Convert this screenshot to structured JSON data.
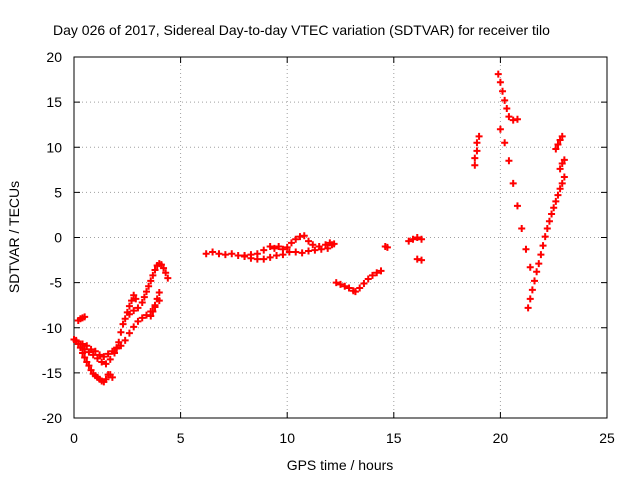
{
  "chart_data": {
    "type": "scatter",
    "title": "Day 026 of 2017, Sidereal Day-to-day VTEC variation (SDTVAR) for receiver tilo",
    "xlabel": "GPS time / hours",
    "ylabel": "SDTVAR / TECUs",
    "xlim": [
      0,
      25
    ],
    "ylim": [
      -20,
      20
    ],
    "x_ticks": [
      0,
      5,
      10,
      15,
      20,
      25
    ],
    "y_ticks": [
      -20,
      -15,
      -10,
      -5,
      0,
      5,
      10,
      15,
      20
    ],
    "grid": true,
    "legend": "none",
    "marker": "+",
    "color": "#ff0000",
    "series": [
      {
        "points": [
          [
            0,
            -11.3
          ],
          [
            0.1,
            -11.5
          ],
          [
            0.2,
            -11.8
          ],
          [
            0.3,
            -12.2
          ],
          [
            0.4,
            -12.8
          ],
          [
            0.5,
            -13.3
          ],
          [
            0.6,
            -13.8
          ],
          [
            0.7,
            -14.2
          ],
          [
            0.8,
            -14.7
          ],
          [
            0.9,
            -15.1
          ],
          [
            1.0,
            -15.3
          ],
          [
            1.1,
            -15.5
          ],
          [
            1.2,
            -15.7
          ],
          [
            1.3,
            -15.9
          ],
          [
            1.4,
            -16.0
          ],
          [
            1.5,
            -15.7
          ],
          [
            1.6,
            -15.2
          ],
          [
            1.7,
            -15.2
          ],
          [
            1.8,
            -15.5
          ]
        ]
      },
      {
        "points": [
          [
            0.2,
            -9.2
          ],
          [
            0.3,
            -9.0
          ],
          [
            0.4,
            -8.9
          ],
          [
            0.5,
            -8.8
          ]
        ]
      },
      {
        "points": [
          [
            0.1,
            -11.4
          ],
          [
            0.3,
            -11.8
          ],
          [
            0.5,
            -12.4
          ],
          [
            0.7,
            -12.7
          ],
          [
            0.9,
            -13.0
          ],
          [
            1.1,
            -13.4
          ],
          [
            1.3,
            -13.8
          ],
          [
            1.5,
            -14.0
          ],
          [
            1.7,
            -13.5
          ],
          [
            1.9,
            -12.8
          ],
          [
            2.0,
            -12.3
          ],
          [
            2.1,
            -11.6
          ],
          [
            2.2,
            -10.5
          ],
          [
            2.3,
            -9.6
          ],
          [
            2.4,
            -9.0
          ],
          [
            2.5,
            -8.3
          ],
          [
            2.6,
            -7.6
          ],
          [
            2.7,
            -7.0
          ],
          [
            2.8,
            -6.4
          ],
          [
            2.9,
            -6.8
          ]
        ]
      },
      {
        "points": [
          [
            0.4,
            -11.8
          ],
          [
            0.6,
            -12.0
          ],
          [
            0.8,
            -12.4
          ],
          [
            1.0,
            -12.6
          ],
          [
            1.2,
            -13.0
          ],
          [
            1.4,
            -13.2
          ],
          [
            1.6,
            -12.9
          ],
          [
            1.8,
            -12.6
          ],
          [
            2.0,
            -12.2
          ],
          [
            2.2,
            -12.0
          ],
          [
            2.4,
            -11.4
          ],
          [
            2.6,
            -10.6
          ],
          [
            2.8,
            -9.9
          ],
          [
            3.0,
            -9.3
          ],
          [
            3.2,
            -8.9
          ],
          [
            3.4,
            -8.6
          ],
          [
            3.6,
            -8.2
          ],
          [
            3.8,
            -7.7
          ],
          [
            4.0,
            -7.0
          ]
        ]
      },
      {
        "points": [
          [
            2.6,
            -8.5
          ],
          [
            2.8,
            -8.1
          ],
          [
            3.0,
            -7.8
          ],
          [
            3.2,
            -7.2
          ],
          [
            3.3,
            -6.6
          ],
          [
            3.4,
            -6.0
          ],
          [
            3.5,
            -5.4
          ],
          [
            3.6,
            -4.8
          ],
          [
            3.7,
            -4.2
          ],
          [
            3.8,
            -3.6
          ],
          [
            3.9,
            -3.1
          ],
          [
            4.0,
            -2.9
          ],
          [
            4.1,
            -3.0
          ],
          [
            4.2,
            -3.4
          ],
          [
            4.3,
            -3.9
          ],
          [
            4.4,
            -4.5
          ]
        ]
      },
      {
        "points": [
          [
            3.6,
            -8.7
          ],
          [
            3.7,
            -8.2
          ],
          [
            3.8,
            -7.5
          ],
          [
            3.9,
            -6.8
          ],
          [
            4.0,
            -6.1
          ]
        ]
      },
      {
        "points": [
          [
            6.2,
            -1.8
          ],
          [
            6.5,
            -1.6
          ],
          [
            6.8,
            -1.8
          ],
          [
            7.1,
            -1.9
          ],
          [
            7.4,
            -1.8
          ],
          [
            7.7,
            -2.0
          ],
          [
            8.0,
            -2.1
          ],
          [
            8.3,
            -2.3
          ],
          [
            8.6,
            -2.4
          ],
          [
            8.9,
            -2.4
          ],
          [
            9.2,
            -2.2
          ],
          [
            9.5,
            -2.0
          ],
          [
            9.8,
            -1.9
          ],
          [
            10.1,
            -1.6
          ],
          [
            10.4,
            -1.6
          ],
          [
            10.7,
            -1.7
          ],
          [
            11.0,
            -1.5
          ],
          [
            11.3,
            -1.4
          ],
          [
            11.6,
            -1.3
          ],
          [
            11.9,
            -1.2
          ],
          [
            12.1,
            -0.8
          ]
        ]
      },
      {
        "points": [
          [
            8.0,
            -2.0
          ],
          [
            8.3,
            -1.9
          ],
          [
            8.6,
            -1.8
          ],
          [
            8.9,
            -1.4
          ],
          [
            9.2,
            -1.0
          ],
          [
            9.4,
            -1.2
          ],
          [
            9.6,
            -1.0
          ],
          [
            9.8,
            -1.3
          ],
          [
            10.0,
            -1.1
          ],
          [
            10.2,
            -0.6
          ],
          [
            10.4,
            -0.2
          ],
          [
            10.6,
            0.1
          ],
          [
            10.8,
            0.2
          ],
          [
            11.0,
            -0.4
          ],
          [
            11.2,
            -0.8
          ],
          [
            11.5,
            -1.0
          ],
          [
            11.8,
            -0.8
          ],
          [
            12.0,
            -0.6
          ],
          [
            12.2,
            -0.7
          ]
        ]
      },
      {
        "points": [
          [
            12.3,
            -5.0
          ],
          [
            12.5,
            -5.2
          ],
          [
            12.7,
            -5.4
          ],
          [
            12.9,
            -5.6
          ],
          [
            13.1,
            -5.9
          ],
          [
            13.2,
            -6.0
          ],
          [
            13.4,
            -5.6
          ],
          [
            13.6,
            -5.1
          ],
          [
            13.8,
            -4.6
          ],
          [
            14.0,
            -4.2
          ],
          [
            14.2,
            -3.9
          ],
          [
            14.4,
            -3.7
          ]
        ]
      },
      {
        "points": [
          [
            14.6,
            -1.0
          ],
          [
            14.7,
            -1.1
          ]
        ]
      },
      {
        "points": [
          [
            15.7,
            -0.4
          ],
          [
            15.9,
            -0.2
          ],
          [
            16.1,
            0.0
          ],
          [
            16.3,
            -0.2
          ]
        ]
      },
      {
        "points": [
          [
            16.1,
            -2.4
          ],
          [
            16.3,
            -2.5
          ]
        ]
      },
      {
        "points": [
          [
            18.8,
            8.0
          ],
          [
            18.8,
            8.8
          ],
          [
            18.9,
            9.6
          ],
          [
            18.9,
            10.5
          ],
          [
            19.0,
            11.2
          ]
        ]
      },
      {
        "points": [
          [
            19.9,
            18.1
          ],
          [
            20.0,
            17.2
          ],
          [
            20.1,
            16.2
          ],
          [
            20.2,
            15.2
          ],
          [
            20.3,
            14.3
          ],
          [
            20.4,
            13.4
          ],
          [
            20.6,
            13.0
          ],
          [
            20.8,
            13.1
          ]
        ]
      },
      {
        "points": [
          [
            20.0,
            12.0
          ],
          [
            20.2,
            10.5
          ],
          [
            20.4,
            8.5
          ],
          [
            20.6,
            6.0
          ],
          [
            20.8,
            3.5
          ],
          [
            21.0,
            1.0
          ],
          [
            21.2,
            -1.3
          ],
          [
            21.4,
            -3.3
          ]
        ]
      },
      {
        "points": [
          [
            21.3,
            -7.8
          ],
          [
            21.4,
            -6.8
          ],
          [
            21.5,
            -5.8
          ],
          [
            21.6,
            -4.8
          ],
          [
            21.7,
            -3.8
          ],
          [
            21.8,
            -2.9
          ],
          [
            21.9,
            -1.9
          ],
          [
            22.0,
            -0.9
          ],
          [
            22.1,
            0.1
          ],
          [
            22.2,
            1.0
          ],
          [
            22.3,
            1.8
          ],
          [
            22.4,
            2.6
          ],
          [
            22.5,
            3.3
          ],
          [
            22.6,
            4.0
          ],
          [
            22.7,
            4.7
          ],
          [
            22.8,
            5.4
          ],
          [
            22.9,
            6.0
          ],
          [
            23.0,
            6.7
          ]
        ]
      },
      {
        "points": [
          [
            22.6,
            9.8
          ],
          [
            22.7,
            10.3
          ],
          [
            22.8,
            10.8
          ],
          [
            22.9,
            11.2
          ]
        ]
      },
      {
        "points": [
          [
            22.8,
            7.6
          ],
          [
            22.9,
            8.2
          ],
          [
            23.0,
            8.6
          ]
        ]
      }
    ]
  }
}
